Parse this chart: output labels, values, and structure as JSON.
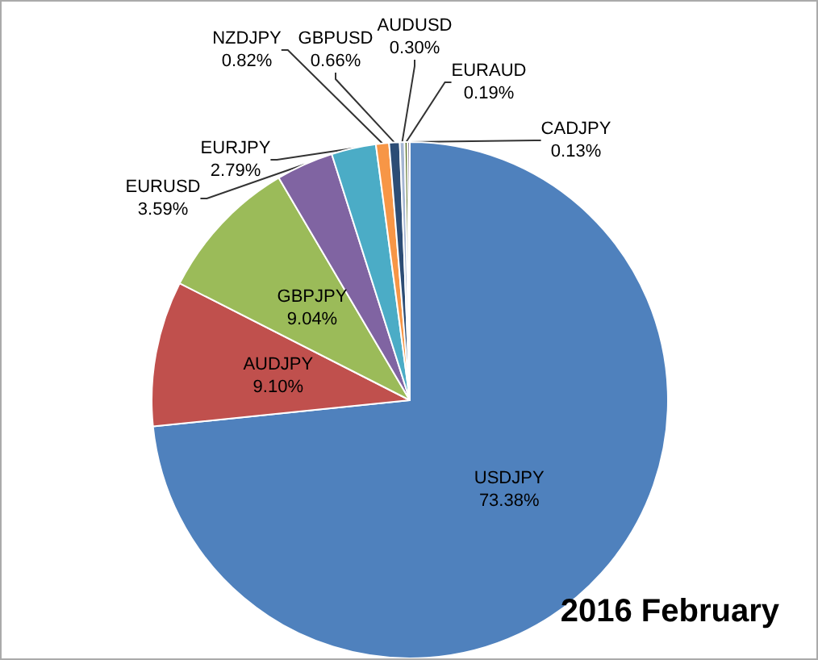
{
  "chart_data": {
    "type": "pie",
    "title": "2016 February",
    "categories": [
      "USDJPY",
      "AUDJPY",
      "GBPJPY",
      "EURUSD",
      "EURJPY",
      "NZDJPY",
      "GBPUSD",
      "AUDUSD",
      "EURAUD",
      "CADJPY"
    ],
    "values": [
      73.38,
      9.1,
      9.04,
      3.59,
      2.79,
      0.82,
      0.66,
      0.3,
      0.19,
      0.13
    ],
    "value_labels": [
      "73.38%",
      "9.10%",
      "9.04%",
      "3.59%",
      "2.79%",
      "0.82%",
      "0.66%",
      "0.30%",
      "0.19%",
      "0.13%"
    ],
    "colors": [
      "#4f81bd",
      "#c0504d",
      "#9bbb59",
      "#8064a2",
      "#4bacc6",
      "#f79646",
      "#2c4d75",
      "#a5b6d2",
      "#5f7530",
      "#4d3b62"
    ],
    "legend": false
  }
}
